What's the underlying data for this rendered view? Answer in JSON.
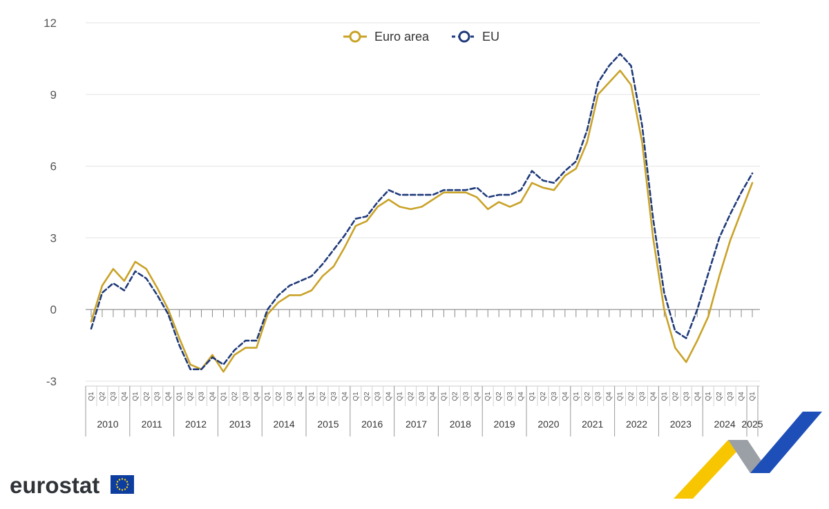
{
  "chart_data": {
    "type": "line",
    "title": "",
    "xlabel": "",
    "ylabel": "",
    "ylim": [
      -3,
      12
    ],
    "yticks": [
      "12",
      "9",
      "6",
      "3",
      "0",
      "-3"
    ],
    "ytick_values": [
      12,
      9,
      6,
      3,
      0,
      -3
    ],
    "grid": "horizontal",
    "legend": "top-center",
    "quarter_labels": [
      "Q1",
      "Q2",
      "Q3",
      "Q4"
    ],
    "years": [
      "2010",
      "2011",
      "2012",
      "2013",
      "2014",
      "2015",
      "2016",
      "2017",
      "2018",
      "2019",
      "2020",
      "2021",
      "2022",
      "2023",
      "2024",
      "2025"
    ],
    "x": [
      "2010Q1",
      "2010Q2",
      "2010Q3",
      "2010Q4",
      "2011Q1",
      "2011Q2",
      "2011Q3",
      "2011Q4",
      "2012Q1",
      "2012Q2",
      "2012Q3",
      "2012Q4",
      "2013Q1",
      "2013Q2",
      "2013Q3",
      "2013Q4",
      "2014Q1",
      "2014Q2",
      "2014Q3",
      "2014Q4",
      "2015Q1",
      "2015Q2",
      "2015Q3",
      "2015Q4",
      "2016Q1",
      "2016Q2",
      "2016Q3",
      "2016Q4",
      "2017Q1",
      "2017Q2",
      "2017Q3",
      "2017Q4",
      "2018Q1",
      "2018Q2",
      "2018Q3",
      "2018Q4",
      "2019Q1",
      "2019Q2",
      "2019Q3",
      "2019Q4",
      "2020Q1",
      "2020Q2",
      "2020Q3",
      "2020Q4",
      "2021Q1",
      "2021Q2",
      "2021Q3",
      "2021Q4",
      "2022Q1",
      "2022Q2",
      "2022Q3",
      "2022Q4",
      "2023Q1",
      "2023Q2",
      "2023Q3",
      "2023Q4",
      "2024Q1",
      "2024Q2",
      "2024Q3",
      "2024Q4",
      "2025Q1"
    ],
    "series": [
      {
        "name": "Euro area",
        "color": "#c9a227",
        "style": "solid",
        "values": [
          -0.5,
          1.0,
          1.7,
          1.2,
          2.0,
          1.7,
          0.9,
          0.0,
          -1.2,
          -2.3,
          -2.5,
          -1.9,
          -2.6,
          -1.9,
          -1.6,
          -1.6,
          -0.2,
          0.3,
          0.6,
          0.6,
          0.8,
          1.4,
          1.8,
          2.6,
          3.5,
          3.7,
          4.3,
          4.6,
          4.3,
          4.2,
          4.3,
          4.6,
          4.9,
          4.9,
          4.9,
          4.7,
          4.2,
          4.5,
          4.3,
          4.5,
          5.3,
          5.1,
          5.0,
          5.6,
          5.9,
          7.0,
          9.0,
          9.5,
          10.0,
          9.4,
          7.0,
          3.0,
          0.0,
          -1.6,
          -2.2,
          -1.3,
          -0.3,
          1.4,
          2.9,
          4.1,
          5.3
        ]
      },
      {
        "name": "EU",
        "color": "#1f3a7a",
        "style": "dashed",
        "values": [
          -0.8,
          0.7,
          1.1,
          0.8,
          1.6,
          1.3,
          0.6,
          -0.2,
          -1.5,
          -2.5,
          -2.5,
          -2.0,
          -2.3,
          -1.7,
          -1.3,
          -1.3,
          0.0,
          0.6,
          1.0,
          1.2,
          1.4,
          1.9,
          2.5,
          3.1,
          3.8,
          3.9,
          4.5,
          5.0,
          4.8,
          4.8,
          4.8,
          4.8,
          5.0,
          5.0,
          5.0,
          5.1,
          4.7,
          4.8,
          4.8,
          5.0,
          5.8,
          5.4,
          5.3,
          5.8,
          6.2,
          7.5,
          9.5,
          10.2,
          10.7,
          10.2,
          7.7,
          3.8,
          0.7,
          -0.9,
          -1.2,
          0.0,
          1.5,
          3.0,
          4.0,
          4.9,
          5.7
        ]
      }
    ]
  },
  "logo": {
    "text": "eurostat",
    "flag_color": "#0d3d9e",
    "star_color": "#ffd617"
  },
  "decoration": {
    "colors": [
      "#f7c600",
      "#9aa0a6",
      "#1e4fb8"
    ]
  }
}
